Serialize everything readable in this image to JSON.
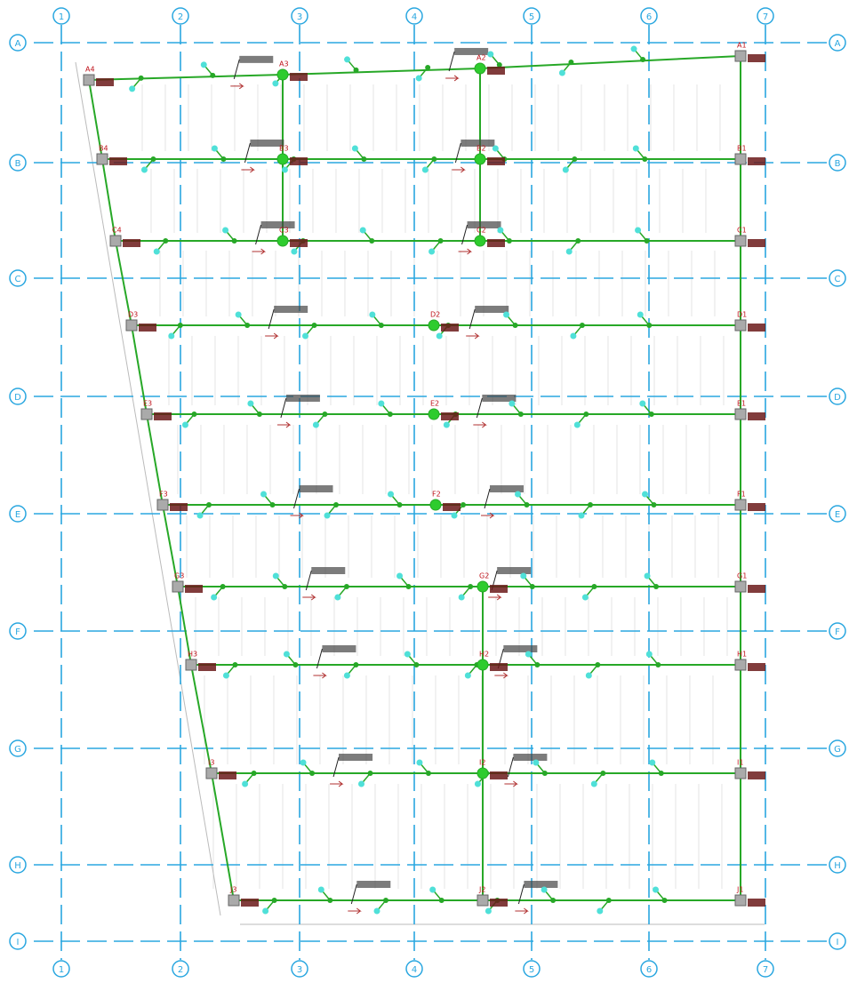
{
  "grid": {
    "columns": [
      "1",
      "2",
      "3",
      "4",
      "5",
      "6",
      "7"
    ],
    "rows": [
      "A",
      "B",
      "C",
      "D",
      "E",
      "F",
      "G",
      "H",
      "I"
    ]
  },
  "nodes": [
    "A4",
    "A3",
    "A2",
    "A1",
    "B4",
    "B3",
    "B2",
    "B1",
    "C4",
    "C3",
    "C2",
    "C1",
    "D3",
    "D2",
    "D1",
    "E3",
    "E2",
    "E1",
    "F3",
    "F2",
    "F1",
    "G3",
    "G2",
    "G1",
    "H3",
    "H2",
    "H1",
    "I3",
    "I2",
    "I1",
    "J3",
    "J2",
    "J1"
  ]
}
